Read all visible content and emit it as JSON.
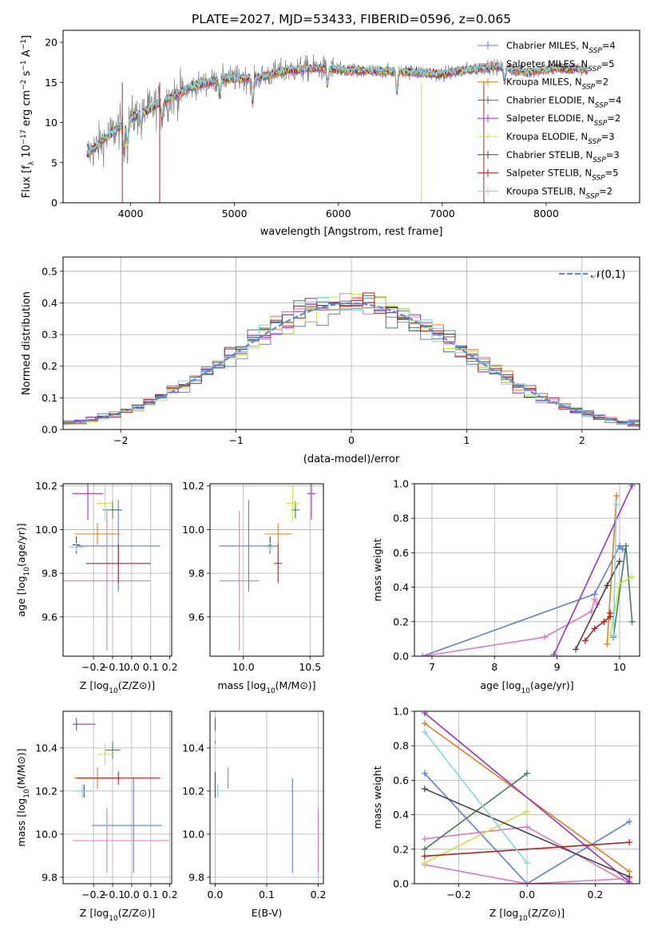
{
  "figure_title": "PLATE=2027, MJD=53433, FIBERID=0596, z=0.065",
  "series_names": [
    "Chabrier MILES, N_SSP=4",
    "Salpeter MILES, N_SSP=5",
    "Kroupa MILES, N_SSP=2",
    "Chabrier ELODIE, N_SSP=4",
    "Salpeter ELODIE, N_SSP=2",
    "Kroupa ELODIE, N_SSP=3",
    "Chabrier STELIB, N_SSP=3",
    "Salpeter STELIB, N_SSP=5",
    "Kroupa STELIB, N_SSP=2"
  ],
  "series_colors": [
    "#5b7fd8",
    "#e377c2",
    "#e67e22",
    "#4a7c59",
    "#9932cc",
    "#c8e63c",
    "#444444",
    "#b22222",
    "#7fd8e0"
  ],
  "chart_data": [
    {
      "id": "spectrum",
      "type": "line",
      "xlabel": "wavelength [Angstrom, rest frame]",
      "ylabel": "Flux [f_λ 10^-17 erg cm^-2 s^-1 A^-1]",
      "xlim": [
        3350,
        8900
      ],
      "ylim": [
        0,
        21.5
      ],
      "xticks": [
        4000,
        5000,
        6000,
        7000,
        8000
      ],
      "yticks": [
        0,
        5,
        10,
        15,
        20
      ],
      "legend": "top-right",
      "grid": false,
      "data_range": [
        3580,
        8400
      ],
      "continuum": [
        [
          3580,
          6.0
        ],
        [
          3800,
          8.5
        ],
        [
          4000,
          10.5
        ],
        [
          4300,
          12.5
        ],
        [
          4600,
          14.5
        ],
        [
          4900,
          15.5
        ],
        [
          5200,
          15.5
        ],
        [
          5500,
          16.5
        ],
        [
          5800,
          16.8
        ],
        [
          6100,
          16.5
        ],
        [
          6400,
          16.4
        ],
        [
          6700,
          16.3
        ],
        [
          7000,
          16.0
        ],
        [
          7200,
          16.5
        ],
        [
          7500,
          17.0
        ],
        [
          7800,
          16.3
        ],
        [
          8100,
          16.8
        ],
        [
          8400,
          16.6
        ]
      ],
      "features": [
        [
          3934,
          3.0
        ],
        [
          3969,
          3.0
        ],
        [
          4102,
          1.5
        ],
        [
          4305,
          2.0
        ],
        [
          4861,
          2.0
        ],
        [
          5175,
          3.0
        ],
        [
          5895,
          2.0
        ],
        [
          6563,
          2.5
        ],
        [
          7600,
          1.5
        ]
      ]
    },
    {
      "id": "residuals",
      "type": "histogram",
      "xlabel": "(data-model)/error",
      "ylabel": "Normed distribution",
      "xlim": [
        -2.5,
        2.5
      ],
      "ylim": [
        0,
        0.545
      ],
      "xticks": [
        -2,
        -1,
        0,
        1,
        2
      ],
      "yticks": [
        0.0,
        0.1,
        0.2,
        0.3,
        0.4,
        0.5
      ],
      "grid": true,
      "legend": "top-right",
      "reference_curve": {
        "label": "𝒩(0,1)",
        "mean": 0,
        "sd": 1
      },
      "bin_width": 0.1
    },
    {
      "id": "z-age",
      "type": "scatter",
      "xlabel": "Z [log10(Z/Z⊙)]",
      "ylabel": "age [log10(age/yr)]",
      "xlim": [
        -0.36,
        0.21
      ],
      "ylim": [
        9.42,
        10.21
      ],
      "xticks": [
        -0.2,
        -0.1,
        0.0,
        0.1,
        0.2
      ],
      "yticks": [
        9.6,
        9.8,
        10.0,
        10.2
      ],
      "grid": true,
      "points": [
        {
          "s": 0,
          "x": -0.07,
          "y": 9.925,
          "xerr": [
            0.22,
            0.22
          ],
          "yerr": [
            0.21,
            0.21
          ]
        },
        {
          "s": 1,
          "x": -0.13,
          "y": 9.765,
          "xerr": [
            0.23,
            0.23
          ],
          "yerr": [
            0.32,
            0.32
          ]
        },
        {
          "s": 2,
          "x": -0.18,
          "y": 9.98,
          "xerr": [
            0.12,
            0.12
          ],
          "yerr": [
            0.05,
            0.05
          ]
        },
        {
          "s": 3,
          "x": -0.1,
          "y": 10.09,
          "xerr": [
            0.05,
            0.05
          ],
          "yerr": [
            0.04,
            0.04
          ]
        },
        {
          "s": 4,
          "x": -0.23,
          "y": 10.165,
          "xerr": [
            0.08,
            0.08
          ],
          "yerr": [
            0.12,
            0.12
          ]
        },
        {
          "s": 5,
          "x": -0.14,
          "y": 10.12,
          "xerr": [
            0.04,
            0.04
          ],
          "yerr": [
            0.08,
            0.08
          ]
        },
        {
          "s": 6,
          "x": -0.29,
          "y": 9.93,
          "xerr": [
            0.02,
            0.02
          ],
          "yerr": [
            0.04,
            0.04
          ]
        },
        {
          "s": 7,
          "x": -0.07,
          "y": 9.845,
          "xerr": [
            0.17,
            0.17
          ],
          "yerr": [
            0.09,
            0.09
          ]
        },
        {
          "s": 8,
          "x": -0.29,
          "y": 9.92,
          "xerr": [
            0.04,
            0.04
          ],
          "yerr": [
            0.02,
            0.02
          ]
        }
      ]
    },
    {
      "id": "mass-age",
      "type": "scatter",
      "xlabel": "mass [log10(M/M⊙)]",
      "ylabel": "",
      "xlim": [
        9.75,
        10.6
      ],
      "ylim": [
        9.42,
        10.21
      ],
      "xticks": [
        10.0,
        10.5
      ],
      "yticks": [
        9.6,
        9.8,
        10.0,
        10.2
      ],
      "grid": true,
      "points": [
        {
          "s": 0,
          "x": 10.04,
          "y": 9.925,
          "xerr": [
            0.22,
            0.22
          ],
          "yerr": [
            0.21,
            0.21
          ]
        },
        {
          "s": 1,
          "x": 9.97,
          "y": 9.765,
          "xerr": [
            0.15,
            0.15
          ],
          "yerr": [
            0.32,
            0.32
          ]
        },
        {
          "s": 2,
          "x": 10.26,
          "y": 9.98,
          "xerr": [
            0.1,
            0.1
          ],
          "yerr": [
            0.05,
            0.05
          ]
        },
        {
          "s": 3,
          "x": 10.39,
          "y": 10.09,
          "xerr": [
            0.03,
            0.03
          ],
          "yerr": [
            0.04,
            0.04
          ]
        },
        {
          "s": 4,
          "x": 10.51,
          "y": 10.165,
          "xerr": [
            0.03,
            0.03
          ],
          "yerr": [
            0.12,
            0.12
          ]
        },
        {
          "s": 5,
          "x": 10.37,
          "y": 10.12,
          "xerr": [
            0.05,
            0.05
          ],
          "yerr": [
            0.08,
            0.08
          ]
        },
        {
          "s": 6,
          "x": 10.2,
          "y": 9.93,
          "xerr": [
            0.01,
            0.01
          ],
          "yerr": [
            0.04,
            0.04
          ]
        },
        {
          "s": 7,
          "x": 10.26,
          "y": 9.845,
          "xerr": [
            0.03,
            0.03
          ],
          "yerr": [
            0.09,
            0.09
          ]
        },
        {
          "s": 8,
          "x": 10.2,
          "y": 9.92,
          "xerr": [
            0.02,
            0.02
          ],
          "yerr": [
            0.02,
            0.02
          ]
        }
      ]
    },
    {
      "id": "age-weight",
      "type": "line",
      "xlabel": "age [log10(age/yr)]",
      "ylabel": "mass weight",
      "xlim": [
        6.72,
        10.32
      ],
      "ylim": [
        0,
        1.0
      ],
      "xticks": [
        7,
        8,
        9,
        10
      ],
      "yticks": [
        0.0,
        0.2,
        0.4,
        0.6,
        0.8,
        1.0
      ],
      "grid": true,
      "series": [
        {
          "s": 0,
          "x": [
            6.85,
            9.6,
            10.0,
            10.05
          ],
          "y": [
            0.0,
            0.36,
            0.64,
            0.62
          ]
        },
        {
          "s": 1,
          "x": 6.85,
          "xs": [
            6.85,
            8.8,
            9.55,
            9.6,
            9.65
          ],
          "ys": [
            0.0,
            0.11,
            0.26,
            0.33,
            0.3
          ]
        },
        {
          "s": 2,
          "x": [
            9.8,
            9.95
          ],
          "y": [
            0.07,
            0.93
          ]
        },
        {
          "s": 3,
          "x": [
            9.9,
            10.1,
            10.2
          ],
          "y": [
            0.11,
            0.64,
            0.2
          ]
        },
        {
          "s": 4,
          "x": [
            8.95,
            10.2
          ],
          "y": [
            0.01,
            0.99
          ]
        },
        {
          "s": 5,
          "x": [
            9.85,
            10.0,
            10.2
          ],
          "y": [
            0.12,
            0.42,
            0.46
          ]
        },
        {
          "s": 6,
          "x": [
            9.3,
            9.8,
            10.0
          ],
          "y": [
            0.04,
            0.41,
            0.55
          ]
        },
        {
          "s": 7,
          "x": [
            9.45,
            9.6,
            9.75,
            9.85,
            9.85
          ],
          "y": [
            0.09,
            0.16,
            0.2,
            0.23,
            0.25
          ]
        },
        {
          "s": 8,
          "x": [
            9.9,
            9.95
          ],
          "y": [
            0.12,
            0.88
          ]
        }
      ]
    },
    {
      "id": "z-mass",
      "type": "scatter",
      "xlabel": "Z [log10(Z/Z⊙)]",
      "ylabel": "mass [log10(M/M⊙)]",
      "xlim": [
        -0.36,
        0.21
      ],
      "ylim": [
        9.77,
        10.57
      ],
      "xticks": [
        -0.2,
        -0.1,
        0.0,
        0.1,
        0.2
      ],
      "yticks": [
        9.8,
        10.0,
        10.2,
        10.4
      ],
      "grid": true,
      "points": [
        {
          "s": 0,
          "x": 0.01,
          "y": 10.04,
          "xerr": [
            0.22,
            0.15
          ],
          "yerr": [
            0.22,
            0.22
          ]
        },
        {
          "s": 1,
          "x": -0.13,
          "y": 9.97,
          "xerr": [
            0.18,
            0.33
          ],
          "yerr": [
            0.15,
            0.15
          ]
        },
        {
          "s": 2,
          "x": -0.18,
          "y": 10.26,
          "xerr": [
            0.12,
            0.12
          ],
          "yerr": [
            0.05,
            0.05
          ]
        },
        {
          "s": 3,
          "x": -0.1,
          "y": 10.39,
          "xerr": [
            0.04,
            0.04
          ],
          "yerr": [
            0.04,
            0.04
          ]
        },
        {
          "s": 4,
          "x": -0.29,
          "y": 10.51,
          "xerr": [
            0.02,
            0.1
          ],
          "yerr": [
            0.03,
            0.03
          ]
        },
        {
          "s": 5,
          "x": -0.14,
          "y": 10.37,
          "xerr": [
            0.04,
            0.04
          ],
          "yerr": [
            0.05,
            0.05
          ]
        },
        {
          "s": 6,
          "x": -0.25,
          "y": 10.2,
          "xerr": [
            0.04,
            0.04
          ],
          "yerr": [
            0.03,
            0.03
          ]
        },
        {
          "s": 7,
          "x": -0.07,
          "y": 10.26,
          "xerr": [
            0.22,
            0.22
          ],
          "yerr": [
            0.03,
            0.03
          ]
        },
        {
          "s": 8,
          "x": -0.26,
          "y": 10.2,
          "xerr": [
            0.05,
            0.05
          ],
          "yerr": [
            0.03,
            0.03
          ]
        }
      ]
    },
    {
      "id": "ebv-mass",
      "type": "scatter",
      "xlabel": "E(B-V)",
      "ylabel": "",
      "xlim": [
        -0.01,
        0.21
      ],
      "ylim": [
        9.77,
        10.57
      ],
      "xticks": [
        0.0,
        0.1,
        0.2
      ],
      "yticks": [
        9.8,
        10.0,
        10.2,
        10.4
      ],
      "grid": true,
      "points": [
        {
          "s": 0,
          "x": 0.15,
          "y": 10.04,
          "xerr": [
            0,
            0
          ],
          "yerr": [
            0.22,
            0.22
          ]
        },
        {
          "s": 1,
          "x": 0.2,
          "y": 9.97,
          "xerr": [
            0,
            0
          ],
          "yerr": [
            0.15,
            0.15
          ]
        },
        {
          "s": 2,
          "x": 0.025,
          "y": 10.26,
          "xerr": [
            0,
            0
          ],
          "yerr": [
            0.05,
            0.05
          ]
        },
        {
          "s": 3,
          "x": 0.0,
          "y": 10.39,
          "xerr": [
            0,
            0
          ],
          "yerr": [
            0.04,
            0.04
          ]
        },
        {
          "s": 4,
          "x": 0.0,
          "y": 10.51,
          "xerr": [
            0,
            0
          ],
          "yerr": [
            0.03,
            0.03
          ]
        },
        {
          "s": 5,
          "x": 0.0,
          "y": 10.37,
          "xerr": [
            0,
            0
          ],
          "yerr": [
            0.05,
            0.05
          ]
        },
        {
          "s": 6,
          "x": 0.0,
          "y": 10.2,
          "xerr": [
            0,
            0
          ],
          "yerr": [
            0.03,
            0.03
          ]
        },
        {
          "s": 7,
          "x": 0.0,
          "y": 10.26,
          "xerr": [
            0,
            0
          ],
          "yerr": [
            0.03,
            0.03
          ]
        },
        {
          "s": 8,
          "x": 0.005,
          "y": 10.2,
          "xerr": [
            0,
            0
          ],
          "yerr": [
            0.03,
            0.03
          ]
        }
      ]
    },
    {
      "id": "z-weight",
      "type": "line",
      "xlabel": "Z [log10(Z/Z⊙)]",
      "ylabel": "mass weight",
      "xlim": [
        -0.33,
        0.33
      ],
      "ylim": [
        0,
        1.0
      ],
      "xticks": [
        -0.2,
        0.0,
        0.2
      ],
      "yticks": [
        0.0,
        0.2,
        0.4,
        0.6,
        0.8,
        1.0
      ],
      "grid": true,
      "series": [
        {
          "s": 0,
          "x": [
            -0.3,
            0.0,
            0.3
          ],
          "y": [
            0.64,
            0.0,
            0.36
          ]
        },
        {
          "s": 1,
          "x": [
            -0.3,
            0.0,
            0.3
          ],
          "y": [
            0.11,
            0.0,
            0.03
          ]
        },
        {
          "s": 1,
          "x": [
            -0.3,
            0.0,
            0.3
          ],
          "y": [
            0.26,
            0.33,
            0.0
          ]
        },
        {
          "s": 2,
          "x": [
            -0.3,
            0.3
          ],
          "y": [
            0.93,
            0.07
          ]
        },
        {
          "s": 3,
          "x": [
            -0.3,
            0.0
          ],
          "y": [
            0.2,
            0.64
          ]
        },
        {
          "s": 4,
          "x": [
            -0.3,
            0.3
          ],
          "y": [
            0.99,
            0.01
          ]
        },
        {
          "s": 5,
          "x": [
            -0.3,
            0.0
          ],
          "y": [
            0.12,
            0.42
          ]
        },
        {
          "s": 6,
          "x": [
            -0.3,
            0.3
          ],
          "y": [
            0.55,
            0.04
          ]
        },
        {
          "s": 7,
          "x": [
            -0.3,
            0.3
          ],
          "y": [
            0.16,
            0.24
          ]
        },
        {
          "s": 8,
          "x": [
            -0.3,
            0.0
          ],
          "y": [
            0.88,
            0.12
          ]
        }
      ]
    }
  ]
}
